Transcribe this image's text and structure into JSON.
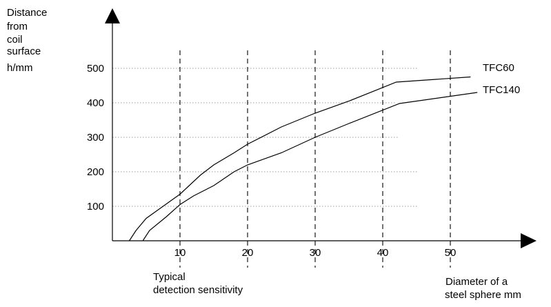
{
  "chart_data": {
    "type": "line",
    "ylabel_lines": [
      "Distance",
      "from",
      "coil",
      "surface",
      "h/mm"
    ],
    "xlabel_lines": [
      "Diameter of a",
      "steel sphere mm"
    ],
    "annotation_lines": [
      "Typical",
      "detection sensitivity"
    ],
    "x_ticks": [
      10,
      20,
      30,
      40,
      50
    ],
    "y_ticks": [
      100,
      200,
      300,
      400,
      500
    ],
    "xlim": [
      0,
      60
    ],
    "ylim": [
      0,
      600
    ],
    "grid": {
      "horizontal": "dotted",
      "vertical": "dashed"
    },
    "series": [
      {
        "name": "TFC60",
        "points": [
          [
            2.5,
            0
          ],
          [
            3.5,
            30
          ],
          [
            5,
            65
          ],
          [
            7.5,
            100
          ],
          [
            10,
            135
          ],
          [
            13,
            190
          ],
          [
            15,
            220
          ],
          [
            18,
            255
          ],
          [
            20,
            280
          ],
          [
            25,
            330
          ],
          [
            30,
            370
          ],
          [
            35,
            405
          ],
          [
            42,
            460
          ],
          [
            53,
            475
          ]
        ]
      },
      {
        "name": "TFC140",
        "points": [
          [
            4.5,
            0
          ],
          [
            5.5,
            30
          ],
          [
            8,
            70
          ],
          [
            10,
            105
          ],
          [
            12,
            130
          ],
          [
            15,
            160
          ],
          [
            18,
            200
          ],
          [
            20,
            220
          ],
          [
            25,
            255
          ],
          [
            30,
            300
          ],
          [
            35,
            340
          ],
          [
            42.5,
            398
          ],
          [
            54,
            430
          ]
        ]
      }
    ]
  }
}
